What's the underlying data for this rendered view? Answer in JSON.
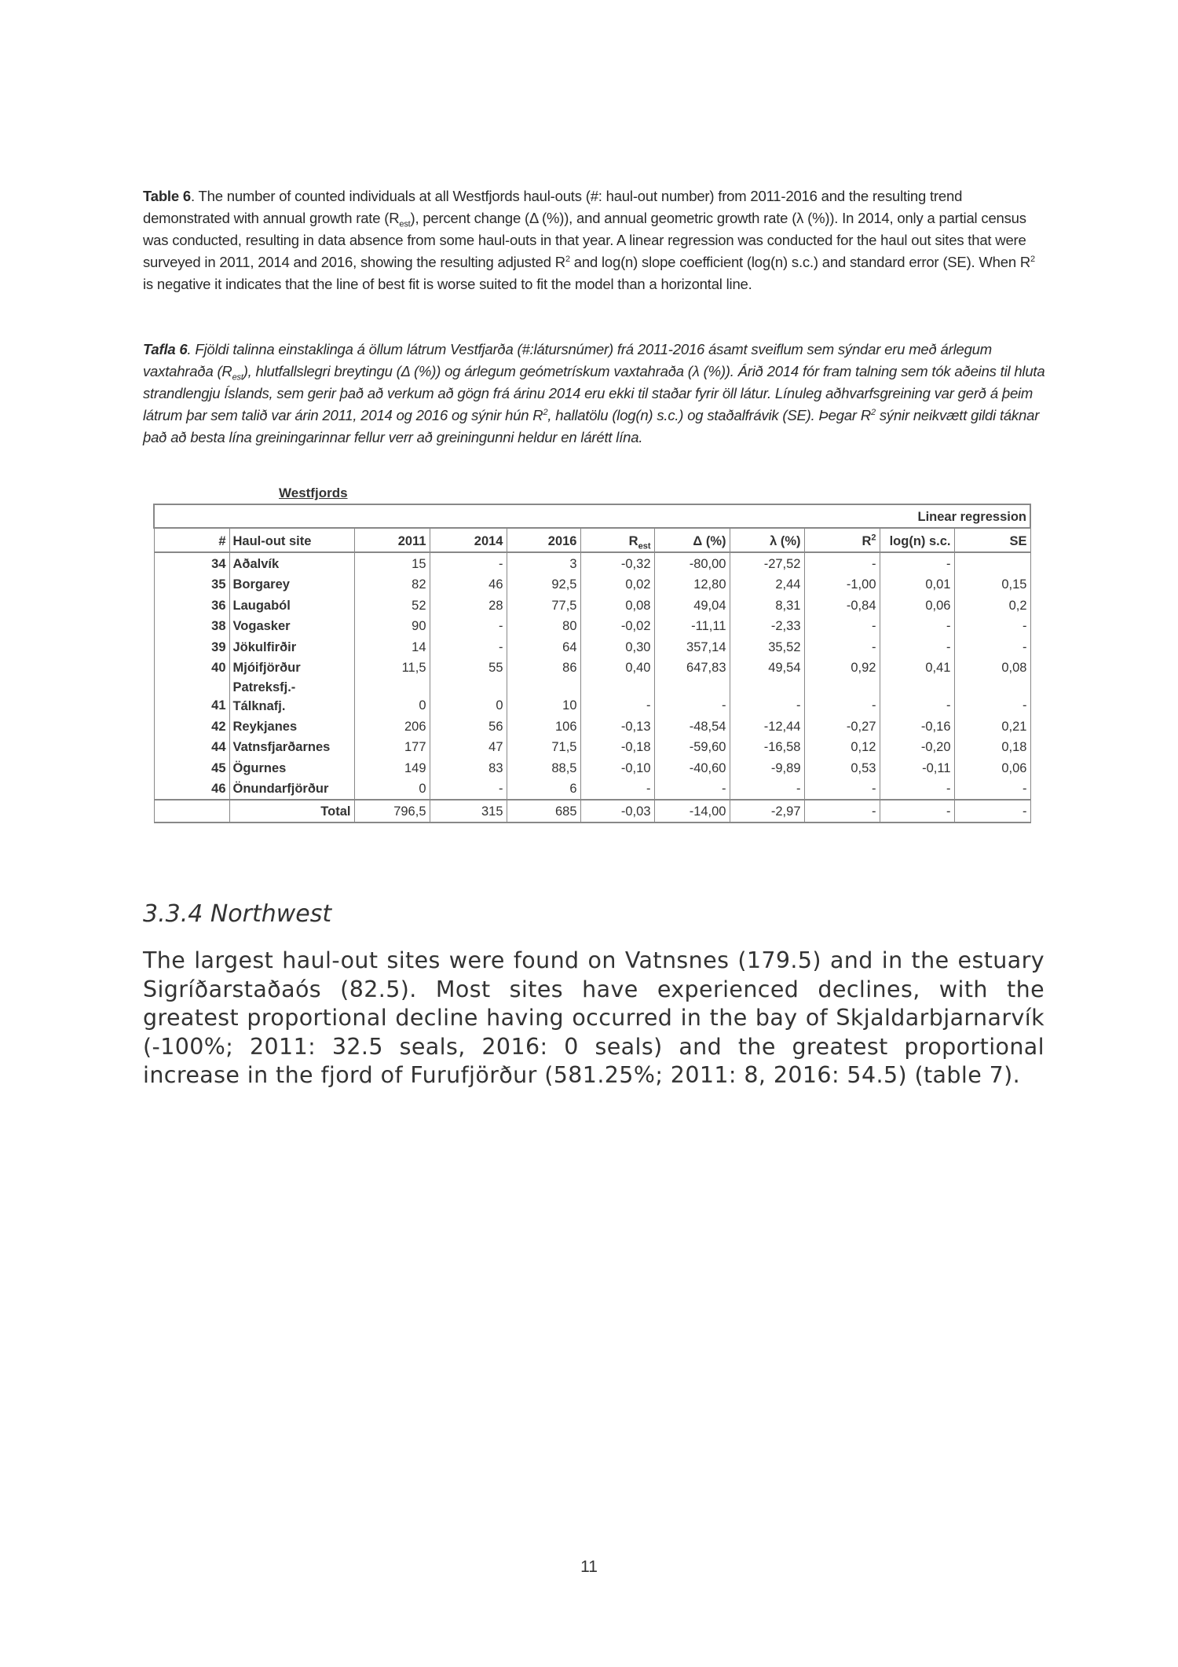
{
  "caption_en": {
    "label": "Table 6",
    "text_1": ". The number of counted individuals at all Westfjords haul-outs (#: haul-out number) from 2011-2016 and the resulting trend demonstrated with annual growth rate (R",
    "sub_1": "est",
    "text_2": "), percent change (Δ (%)), and annual geometric growth rate (λ (%)). In 2014, only a partial census was conducted, resulting in data absence from some haul-outs in that year. A linear regression was conducted for the haul out sites that were surveyed in 2011, 2014 and 2016, showing the resulting adjusted R",
    "sup_1": "2",
    "text_3": " and log(n) slope coefficient (log(n)  s.c.) and standard error (SE). When R",
    "sup_2": "2",
    "text_4": " is negative it indicates that the line of best fit is worse suited to fit the model than a horizontal line."
  },
  "caption_is": {
    "label": "Tafla 6",
    "text_1": ". Fjöldi talinna einstaklinga á öllum látrum Vestfjarða (#:látursnúmer) frá 2011-2016 ásamt sveiflum sem sýndar eru með árlegum vaxtahraða (R",
    "sub_1": "est",
    "text_2": "), hlutfallslegri breytingu (Δ (%)) og árlegum geómetrískum vaxtahraða (λ (%)). Árið 2014 fór fram talning sem tók aðeins til hluta strandlengju Íslands, sem gerir það að verkum að gögn frá árinu 2014 eru ekki til staðar fyrir öll látur. Línuleg aðhvarfsgreining var gerð á þeim látrum þar sem talið var árin 2011, 2014 og 2016 og sýnir hún R",
    "sup_1": "2",
    "text_3": ", hallatölu (log(n)  s.c.) og staðalfrávik (SE). Þegar R",
    "sup_2": "2",
    "text_4": " sýnir neikvætt gildi táknar það að besta lína greiningarinnar fellur verr að greiningunni heldur en lárétt lína."
  },
  "table": {
    "region": "Westfjords",
    "group_header": "Linear regression",
    "headers": {
      "num": "#",
      "site": "Haul-out site",
      "y2011": "2011",
      "y2014": "2014",
      "y2016": "2016",
      "rest": "R",
      "rest_sub": "est",
      "delta": "Δ (%)",
      "lambda": "λ (%)",
      "r2": "R",
      "r2_sup": "2",
      "logn": "log(n) s.c.",
      "se": "SE"
    },
    "rows": [
      [
        "34",
        "Aðalvík",
        "15",
        "-",
        "3",
        "-0,32",
        "-80,00",
        "-27,52",
        "-",
        "-",
        ""
      ],
      [
        "35",
        "Borgarey",
        "82",
        "46",
        "92,5",
        "0,02",
        "12,80",
        "2,44",
        "-1,00",
        "0,01",
        "0,15"
      ],
      [
        "36",
        "Laugaból",
        "52",
        "28",
        "77,5",
        "0,08",
        "49,04",
        "8,31",
        "-0,84",
        "0,06",
        "0,2"
      ],
      [
        "38",
        "Vogasker",
        "90",
        "-",
        "80",
        "-0,02",
        "-11,11",
        "-2,33",
        "-",
        "-",
        "-"
      ],
      [
        "39",
        "Jökulfirðir",
        "14",
        "-",
        "64",
        "0,30",
        "357,14",
        "35,52",
        "-",
        "-",
        "-"
      ],
      [
        "40",
        "Mjóifjörður",
        "11,5",
        "55",
        "86",
        "0,40",
        "647,83",
        "49,54",
        "0,92",
        "0,41",
        "0,08"
      ],
      [
        "41",
        "Patreksfj.-\nTálknafj.",
        "0",
        "0",
        "10",
        "-",
        "-",
        "-",
        "-",
        "-",
        "-"
      ],
      [
        "42",
        "Reykjanes",
        "206",
        "56",
        "106",
        "-0,13",
        "-48,54",
        "-12,44",
        "-0,27",
        "-0,16",
        "0,21"
      ],
      [
        "44",
        "Vatnsfjarðarnes",
        "177",
        "47",
        "71,5",
        "-0,18",
        "-59,60",
        "-16,58",
        "0,12",
        "-0,20",
        "0,18"
      ],
      [
        "45",
        "Ögurnes",
        "149",
        "83",
        "88,5",
        "-0,10",
        "-40,60",
        "-9,89",
        "0,53",
        "-0,11",
        "0,06"
      ],
      [
        "46",
        "Önundarfjörður",
        "0",
        "-",
        "6",
        "-",
        "-",
        "-",
        "-",
        "-",
        "-"
      ]
    ],
    "total": [
      "",
      "Total",
      "796,5",
      "315",
      "685",
      "-0,03",
      "-14,00",
      "-2,97",
      "-",
      "-",
      "-"
    ]
  },
  "section": {
    "heading": "3.3.4 Northwest",
    "paragraph": "The largest haul-out sites were found on Vatnsnes (179.5) and in the estuary Sigríðarstaðaós (82.5). Most sites have experienced declines, with the greatest proportional decline having occurred in the bay of Skjaldarbjarnarvík (-100%; 2011: 32.5 seals, 2016: 0 seals) and the greatest proportional increase in the fjord of Furufjörður (581.25%; 2011: 8, 2016: 54.5) (table 7)."
  },
  "page_number": "11"
}
